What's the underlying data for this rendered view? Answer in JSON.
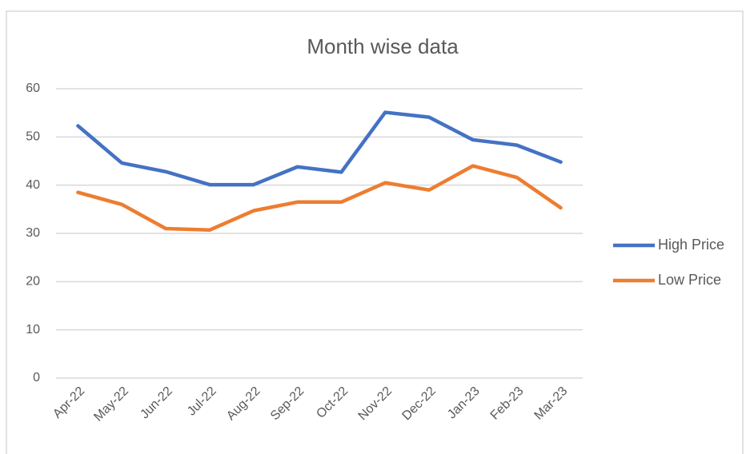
{
  "chart_data": {
    "type": "line",
    "title": "Month wise data",
    "categories": [
      "Apr-22",
      "May-22",
      "Jun-22",
      "Jul-22",
      "Aug-22",
      "Sep-22",
      "Oct-22",
      "Nov-22",
      "Dec-22",
      "Jan-23",
      "Feb-23",
      "Mar-23"
    ],
    "series": [
      {
        "name": "High Price",
        "color": "#4472c4",
        "values": [
          52.3,
          44.6,
          42.8,
          40.1,
          40.1,
          43.8,
          42.7,
          55.1,
          54.1,
          49.4,
          48.3,
          44.8
        ]
      },
      {
        "name": "Low Price",
        "color": "#ed7d31",
        "values": [
          38.5,
          36,
          31,
          30.7,
          34.7,
          36.5,
          36.5,
          40.5,
          39,
          44,
          41.6,
          35.3
        ]
      }
    ],
    "ylim": [
      0,
      60
    ],
    "yticks": [
      0,
      10,
      20,
      30,
      40,
      50,
      60
    ],
    "grid": true,
    "legend": "right"
  }
}
